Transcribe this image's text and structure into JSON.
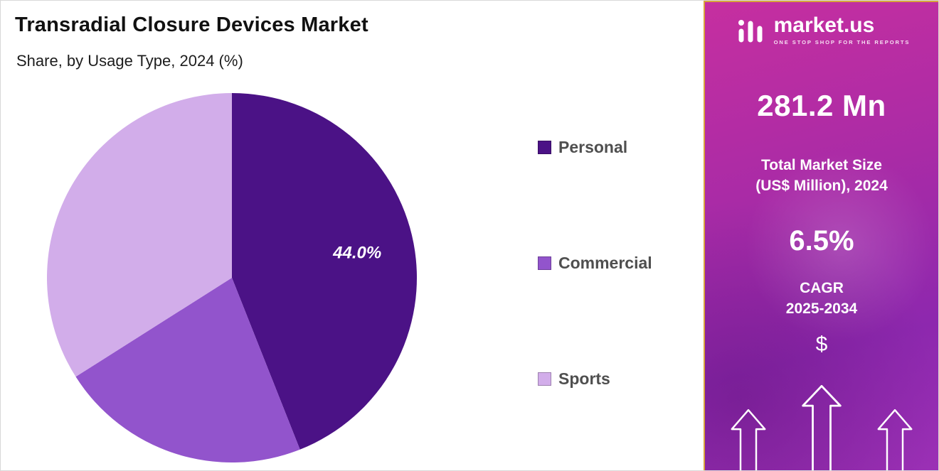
{
  "header": {
    "title": "Transradial Closure Devices Market",
    "subtitle": "Share, by Usage Type, 2024 (%)"
  },
  "chart_data": {
    "type": "pie",
    "title": "Transradial Closure Devices Market",
    "subtitle": "Share, by Usage Type, 2024 (%)",
    "unit": "%",
    "legend_position": "right",
    "start_angle_deg": 0,
    "direction": "clockwise",
    "slices": [
      {
        "label": "Personal",
        "value": 44.0,
        "color": "#4b1286",
        "data_label": "44.0%"
      },
      {
        "label": "Commercial",
        "value": 22.0,
        "color": "#9254cc",
        "data_label": ""
      },
      {
        "label": "Sports",
        "value": 34.0,
        "color": "#d2adea",
        "data_label": ""
      }
    ]
  },
  "sidebar": {
    "logo": {
      "brand": "market.us",
      "tagline": "ONE STOP SHOP FOR THE REPORTS"
    },
    "market_size_value": "281.2 Mn",
    "market_size_label_line1": "Total Market Size",
    "market_size_label_line2": "(US$ Million), 2024",
    "cagr_value": "6.5%",
    "cagr_label_line1": "CAGR",
    "cagr_label_line2": "2025-2034",
    "dollar_symbol": "$",
    "colors": {
      "gradient_top": "#c62fa0",
      "gradient_bottom": "#8d28ae",
      "panel_border": "#d8a43c"
    }
  }
}
